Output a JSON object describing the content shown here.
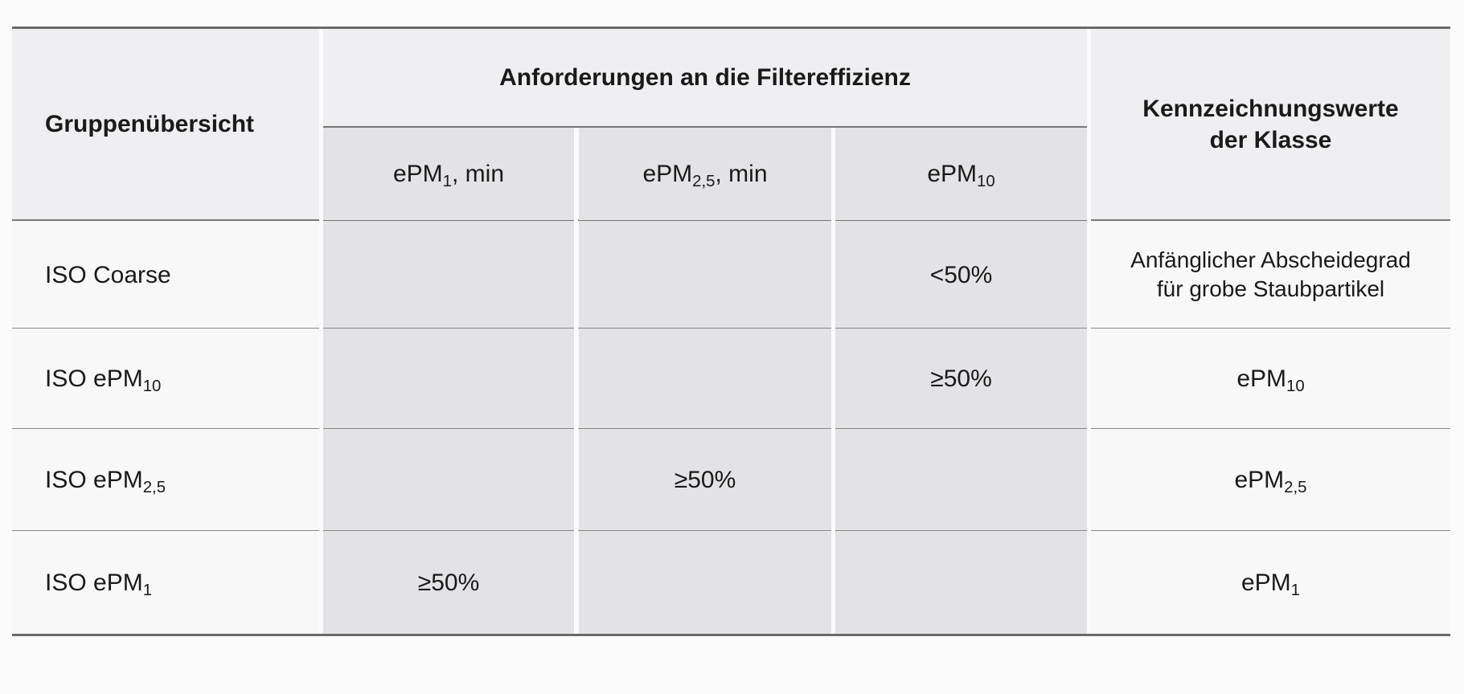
{
  "table": {
    "header": {
      "group": "Gruppenübersicht",
      "requirements": "Anforderungen an die Filtereffizienz",
      "marking": "Kennzeichnungswerte der Klasse",
      "columns": [
        {
          "text": "ePM",
          "sub": "1",
          "suffix": ", min"
        },
        {
          "text": "ePM",
          "sub": "2,5",
          "suffix": ", min"
        },
        {
          "text": "ePM",
          "sub": "10"
        }
      ]
    },
    "rows": [
      {
        "group": {
          "text": "ISO Coarse"
        },
        "epm10": "<50%",
        "marking": {
          "text": "Anfänglicher Abscheidegrad für grobe Staubpartikel"
        }
      },
      {
        "group": {
          "text": "ISO ePM",
          "sub": "10"
        },
        "epm10": "≥50%",
        "marking": {
          "text": "ePM",
          "sub": "10"
        }
      },
      {
        "group": {
          "text": "ISO ePM",
          "sub": "2,5"
        },
        "epm25": "≥50%",
        "marking": {
          "text": "ePM",
          "sub": "2,5"
        }
      },
      {
        "group": {
          "text": "ISO ePM",
          "sub": "1"
        },
        "epm1": "≥50%",
        "marking": {
          "text": "ePM",
          "sub": "1"
        }
      }
    ]
  }
}
